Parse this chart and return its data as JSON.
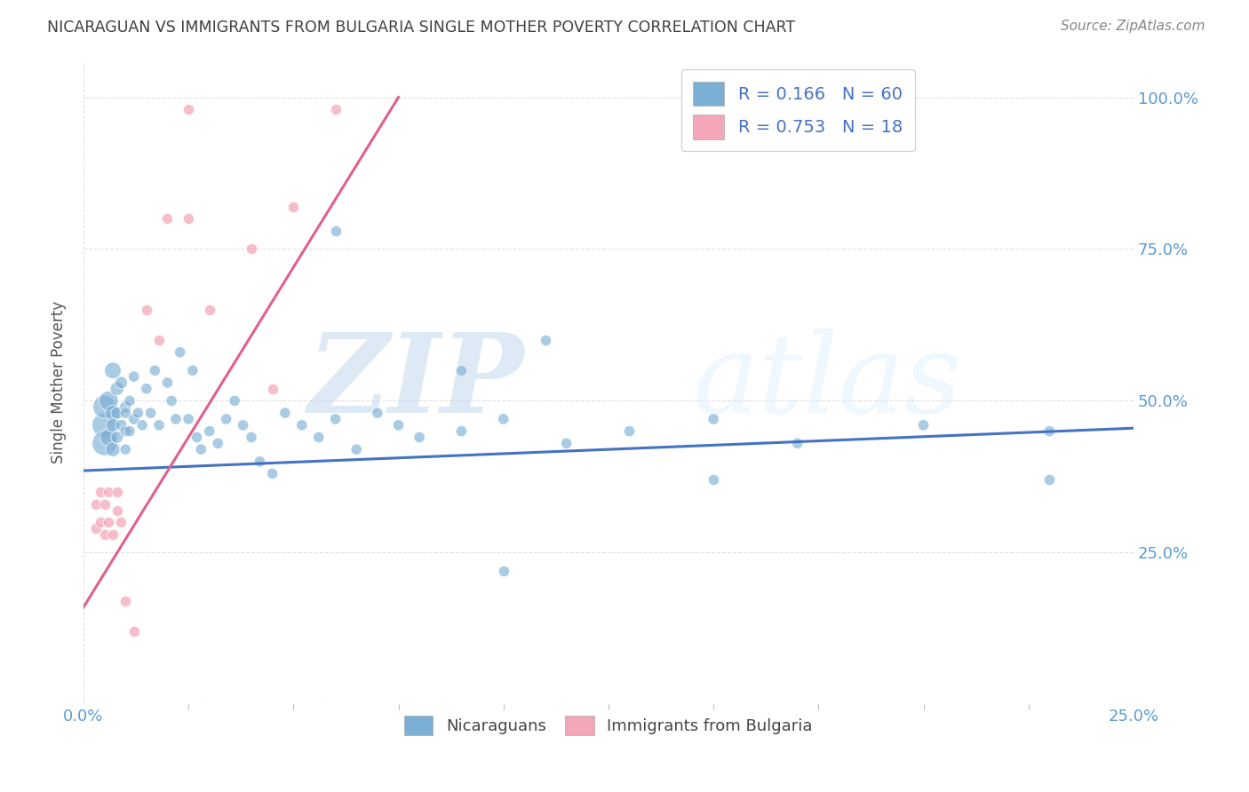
{
  "title": "NICARAGUAN VS IMMIGRANTS FROM BULGARIA SINGLE MOTHER POVERTY CORRELATION CHART",
  "source": "Source: ZipAtlas.com",
  "ylabel": "Single Mother Poverty",
  "legend_blue_R": "R = 0.166",
  "legend_blue_N": "N = 60",
  "legend_pink_R": "R = 0.753",
  "legend_pink_N": "N = 18",
  "legend_label_blue": "Nicaraguans",
  "legend_label_pink": "Immigrants from Bulgaria",
  "watermark": "ZIPatlas",
  "blue_color": "#7BAFD4",
  "pink_color": "#F4A7B9",
  "blue_line_color": "#4472C4",
  "pink_line_color": "#E06090",
  "title_color": "#404040",
  "axis_tick_color": "#5B9BD5",
  "blue_scatter_x": [
    0.005,
    0.005,
    0.005,
    0.006,
    0.006,
    0.007,
    0.007,
    0.007,
    0.007,
    0.008,
    0.008,
    0.008,
    0.009,
    0.009,
    0.01,
    0.01,
    0.01,
    0.01,
    0.011,
    0.011,
    0.012,
    0.012,
    0.013,
    0.014,
    0.015,
    0.016,
    0.017,
    0.018,
    0.02,
    0.021,
    0.022,
    0.023,
    0.025,
    0.026,
    0.027,
    0.028,
    0.03,
    0.032,
    0.034,
    0.036,
    0.038,
    0.04,
    0.042,
    0.045,
    0.048,
    0.052,
    0.056,
    0.06,
    0.065,
    0.07,
    0.075,
    0.08,
    0.09,
    0.1,
    0.115,
    0.13,
    0.15,
    0.17,
    0.2,
    0.23
  ],
  "blue_scatter_y": [
    0.46,
    0.43,
    0.49,
    0.5,
    0.44,
    0.55,
    0.48,
    0.42,
    0.46,
    0.52,
    0.48,
    0.44,
    0.53,
    0.46,
    0.49,
    0.45,
    0.42,
    0.48,
    0.5,
    0.45,
    0.54,
    0.47,
    0.48,
    0.46,
    0.52,
    0.48,
    0.55,
    0.46,
    0.53,
    0.5,
    0.47,
    0.58,
    0.47,
    0.55,
    0.44,
    0.42,
    0.45,
    0.43,
    0.47,
    0.5,
    0.46,
    0.44,
    0.4,
    0.38,
    0.48,
    0.46,
    0.44,
    0.47,
    0.42,
    0.48,
    0.46,
    0.44,
    0.45,
    0.47,
    0.43,
    0.45,
    0.47,
    0.43,
    0.46,
    0.45
  ],
  "blue_scatter_sizes": [
    400,
    400,
    350,
    250,
    200,
    180,
    160,
    140,
    120,
    120,
    100,
    100,
    100,
    90,
    90,
    80,
    80,
    80,
    80,
    80,
    80,
    80,
    80,
    80,
    80,
    80,
    80,
    80,
    80,
    80,
    80,
    80,
    80,
    80,
    80,
    80,
    80,
    80,
    80,
    80,
    80,
    80,
    80,
    80,
    80,
    80,
    80,
    80,
    80,
    80,
    80,
    80,
    80,
    80,
    80,
    80,
    80,
    80,
    80,
    80
  ],
  "blue_outliers_x": [
    0.06,
    0.09,
    0.1,
    0.11,
    0.15,
    0.23
  ],
  "blue_outliers_y": [
    0.78,
    0.55,
    0.22,
    0.6,
    0.37,
    0.37
  ],
  "pink_scatter_x": [
    0.003,
    0.003,
    0.004,
    0.004,
    0.005,
    0.005,
    0.006,
    0.006,
    0.007,
    0.008,
    0.008,
    0.009,
    0.01,
    0.012,
    0.015,
    0.018,
    0.02,
    0.025
  ],
  "pink_scatter_y": [
    0.29,
    0.33,
    0.3,
    0.35,
    0.28,
    0.33,
    0.35,
    0.3,
    0.28,
    0.32,
    0.35,
    0.3,
    0.17,
    0.12,
    0.65,
    0.6,
    0.8,
    0.98
  ],
  "pink_outliers_x": [
    0.025,
    0.03,
    0.04,
    0.045,
    0.05,
    0.06
  ],
  "pink_outliers_y": [
    0.8,
    0.65,
    0.75,
    0.52,
    0.82,
    0.98
  ],
  "blue_line_x": [
    0.0,
    0.25
  ],
  "blue_line_y": [
    0.385,
    0.455
  ],
  "pink_line_x": [
    0.0,
    0.075
  ],
  "pink_line_y": [
    0.16,
    1.0
  ],
  "xlim": [
    0.0,
    0.25
  ],
  "ylim": [
    0.0,
    1.06
  ],
  "y_ticks": [
    0.0,
    0.25,
    0.5,
    0.75,
    1.0
  ],
  "y_tick_labels": [
    "",
    "25.0%",
    "50.0%",
    "75.0%",
    "100.0%"
  ],
  "background_color": "#FFFFFF",
  "grid_color": "#DDDDDD"
}
